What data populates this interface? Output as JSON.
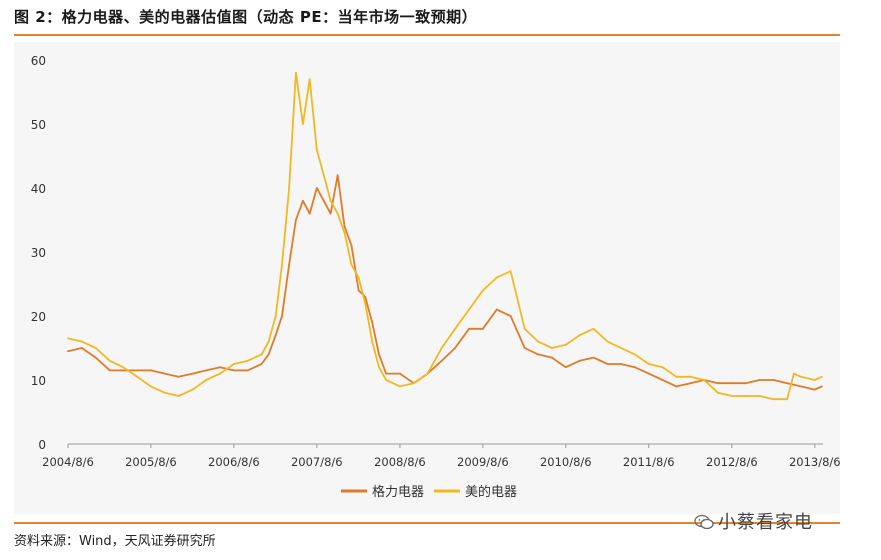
{
  "figure": {
    "title": "图 2：格力电器、美的电器估值图（动态 PE：当年市场一致预期）",
    "source": "资料来源：Wind，天风证券研究所",
    "watermark": "小蔡看家电"
  },
  "colors": {
    "accent": "#e8822a",
    "gree": "#e07b29",
    "midea": "#f2b822",
    "background": "#f6f6f6"
  },
  "chart_data": {
    "type": "line",
    "title": "",
    "xlabel": "",
    "ylabel": "",
    "ylim": [
      0,
      60
    ],
    "yticks": [
      0,
      10,
      20,
      30,
      40,
      50,
      60
    ],
    "xticks": [
      "2004/8/6",
      "2005/8/6",
      "2006/8/6",
      "2007/8/6",
      "2008/8/6",
      "2009/8/6",
      "2010/8/6",
      "2011/8/6",
      "2012/8/6",
      "2013/8/6"
    ],
    "grid": false,
    "legend": "bottom-center",
    "series": [
      {
        "name": "格力电器",
        "color": "#e07b29",
        "points": [
          [
            "2004/8/6",
            14.5
          ],
          [
            "2004/10/6",
            15
          ],
          [
            "2004/12/6",
            13.5
          ],
          [
            "2005/2/6",
            11.5
          ],
          [
            "2005/4/6",
            11.5
          ],
          [
            "2005/6/6",
            11.5
          ],
          [
            "2005/8/6",
            11.5
          ],
          [
            "2005/10/6",
            11
          ],
          [
            "2005/12/6",
            10.5
          ],
          [
            "2006/2/6",
            11
          ],
          [
            "2006/4/6",
            11.5
          ],
          [
            "2006/6/6",
            12
          ],
          [
            "2006/8/6",
            11.5
          ],
          [
            "2006/10/6",
            11.5
          ],
          [
            "2006/12/6",
            12.5
          ],
          [
            "2007/1/6",
            14
          ],
          [
            "2007/2/6",
            17
          ],
          [
            "2007/3/6",
            20
          ],
          [
            "2007/4/6",
            28
          ],
          [
            "2007/5/6",
            35
          ],
          [
            "2007/6/6",
            38
          ],
          [
            "2007/7/6",
            36
          ],
          [
            "2007/8/6",
            40
          ],
          [
            "2007/9/6",
            38
          ],
          [
            "2007/10/6",
            36
          ],
          [
            "2007/11/6",
            42
          ],
          [
            "2007/12/6",
            34
          ],
          [
            "2008/1/6",
            31
          ],
          [
            "2008/2/6",
            24
          ],
          [
            "2008/3/6",
            23
          ],
          [
            "2008/4/6",
            19
          ],
          [
            "2008/5/6",
            14
          ],
          [
            "2008/6/6",
            11
          ],
          [
            "2008/8/6",
            11
          ],
          [
            "2008/10/6",
            9.5
          ],
          [
            "2008/12/6",
            11
          ],
          [
            "2009/2/6",
            13
          ],
          [
            "2009/4/6",
            15
          ],
          [
            "2009/6/6",
            18
          ],
          [
            "2009/8/6",
            18
          ],
          [
            "2009/10/6",
            21
          ],
          [
            "2009/12/6",
            20
          ],
          [
            "2010/2/6",
            15
          ],
          [
            "2010/4/6",
            14
          ],
          [
            "2010/6/6",
            13.5
          ],
          [
            "2010/8/6",
            12
          ],
          [
            "2010/10/6",
            13
          ],
          [
            "2010/12/6",
            13.5
          ],
          [
            "2011/2/6",
            12.5
          ],
          [
            "2011/4/6",
            12.5
          ],
          [
            "2011/6/6",
            12
          ],
          [
            "2011/8/6",
            11
          ],
          [
            "2011/10/6",
            10
          ],
          [
            "2011/12/6",
            9
          ],
          [
            "2012/2/6",
            9.5
          ],
          [
            "2012/4/6",
            10
          ],
          [
            "2012/6/6",
            9.5
          ],
          [
            "2012/8/6",
            9.5
          ],
          [
            "2012/10/6",
            9.5
          ],
          [
            "2012/12/6",
            10
          ],
          [
            "2013/2/6",
            10
          ],
          [
            "2013/4/6",
            9.5
          ],
          [
            "2013/6/6",
            9
          ],
          [
            "2013/8/6",
            8.5
          ],
          [
            "2013/9/6",
            9
          ]
        ]
      },
      {
        "name": "美的电器",
        "color": "#f2b822",
        "points": [
          [
            "2004/8/6",
            16.5
          ],
          [
            "2004/10/6",
            16
          ],
          [
            "2004/12/6",
            15
          ],
          [
            "2005/2/6",
            13
          ],
          [
            "2005/4/6",
            12
          ],
          [
            "2005/6/6",
            10.5
          ],
          [
            "2005/8/6",
            9
          ],
          [
            "2005/10/6",
            8
          ],
          [
            "2005/12/6",
            7.5
          ],
          [
            "2006/2/6",
            8.5
          ],
          [
            "2006/4/6",
            10
          ],
          [
            "2006/6/6",
            11
          ],
          [
            "2006/8/6",
            12.5
          ],
          [
            "2006/10/6",
            13
          ],
          [
            "2006/12/6",
            14
          ],
          [
            "2007/1/6",
            16
          ],
          [
            "2007/2/6",
            20
          ],
          [
            "2007/3/6",
            28
          ],
          [
            "2007/4/6",
            40
          ],
          [
            "2007/5/6",
            58
          ],
          [
            "2007/6/6",
            50
          ],
          [
            "2007/7/6",
            57
          ],
          [
            "2007/8/6",
            46
          ],
          [
            "2007/9/6",
            42
          ],
          [
            "2007/10/6",
            38
          ],
          [
            "2007/11/6",
            36
          ],
          [
            "2007/12/6",
            33
          ],
          [
            "2008/1/6",
            28
          ],
          [
            "2008/2/6",
            26
          ],
          [
            "2008/3/6",
            22
          ],
          [
            "2008/4/6",
            16
          ],
          [
            "2008/5/6",
            12
          ],
          [
            "2008/6/6",
            10
          ],
          [
            "2008/8/6",
            9
          ],
          [
            "2008/10/6",
            9.5
          ],
          [
            "2008/12/6",
            11
          ],
          [
            "2009/2/6",
            15
          ],
          [
            "2009/4/6",
            18
          ],
          [
            "2009/6/6",
            21
          ],
          [
            "2009/8/6",
            24
          ],
          [
            "2009/10/6",
            26
          ],
          [
            "2009/12/6",
            27
          ],
          [
            "2010/2/6",
            18
          ],
          [
            "2010/4/6",
            16
          ],
          [
            "2010/6/6",
            15
          ],
          [
            "2010/8/6",
            15.5
          ],
          [
            "2010/10/6",
            17
          ],
          [
            "2010/12/6",
            18
          ],
          [
            "2011/2/6",
            16
          ],
          [
            "2011/4/6",
            15
          ],
          [
            "2011/6/6",
            14
          ],
          [
            "2011/8/6",
            12.5
          ],
          [
            "2011/10/6",
            12
          ],
          [
            "2011/12/6",
            10.5
          ],
          [
            "2012/2/6",
            10.5
          ],
          [
            "2012/4/6",
            10
          ],
          [
            "2012/6/6",
            8
          ],
          [
            "2012/8/6",
            7.5
          ],
          [
            "2012/10/6",
            7.5
          ],
          [
            "2012/12/6",
            7.5
          ],
          [
            "2013/2/6",
            7
          ],
          [
            "2013/4/6",
            7
          ],
          [
            "2013/5/6",
            11
          ],
          [
            "2013/6/6",
            10.5
          ],
          [
            "2013/8/6",
            10
          ],
          [
            "2013/9/6",
            10.5
          ]
        ]
      }
    ]
  }
}
